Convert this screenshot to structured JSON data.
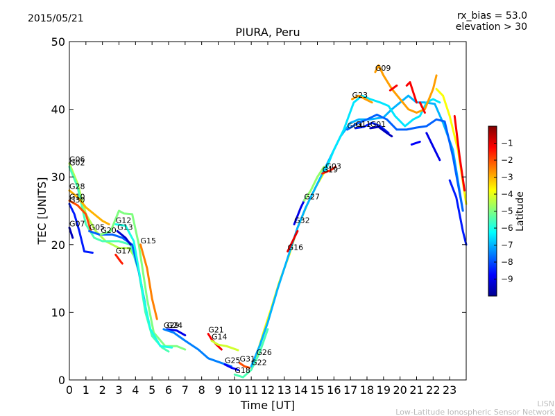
{
  "header": {
    "date": "2015/05/21",
    "rx_bias": "rx_bias = 53.0",
    "elevation": "elevation > 30"
  },
  "footer": {
    "watermark_line1": "LISN",
    "watermark_line2": "Low-Latitude Ionospheric Sensor Network"
  },
  "chart_data": {
    "type": "line",
    "title": "PIURA, Peru",
    "xlabel": "Time [UT]",
    "ylabel": "TEC [UNITS]",
    "xlim": [
      0,
      24
    ],
    "ylim": [
      0,
      50
    ],
    "xticks": [
      0,
      1,
      2,
      3,
      4,
      5,
      6,
      7,
      8,
      9,
      10,
      11,
      12,
      13,
      14,
      15,
      16,
      17,
      18,
      19,
      20,
      21,
      22,
      23
    ],
    "yticks": [
      0,
      10,
      20,
      30,
      40,
      50
    ],
    "colorbar": {
      "label": "Latitude",
      "range": [
        -10,
        0
      ],
      "ticks": [
        -9,
        -8,
        -7,
        -6,
        -5,
        -4,
        -3,
        -2,
        -1
      ],
      "tick_labels": [
        "−9",
        "−8",
        "−7",
        "−6",
        "−5",
        "−4",
        "−3",
        "−2",
        "−1"
      ],
      "colormap": [
        "#00008f",
        "#0000ff",
        "#0080ff",
        "#00ffff",
        "#80ff80",
        "#ffff00",
        "#ff8000",
        "#ff0000",
        "#800000"
      ]
    },
    "series": [
      {
        "name": "G06",
        "lat": -4.5,
        "points": [
          [
            0,
            32
          ],
          [
            0.5,
            29
          ],
          [
            1,
            24.5
          ],
          [
            1.6,
            22
          ],
          [
            2.2,
            20.5
          ],
          [
            3,
            19.5
          ],
          [
            3.6,
            19.5
          ],
          [
            4,
            18
          ]
        ]
      },
      {
        "name": "G02",
        "lat": -5.5,
        "points": [
          [
            0,
            31.5
          ],
          [
            0.5,
            28.5
          ],
          [
            1,
            23
          ],
          [
            1.5,
            21
          ],
          [
            2,
            20.5
          ],
          [
            3,
            20.5
          ],
          [
            3.7,
            20
          ],
          [
            4.2,
            16
          ],
          [
            4.6,
            10
          ],
          [
            5,
            6.5
          ],
          [
            5.6,
            4.8
          ],
          [
            6,
            4.2
          ]
        ]
      },
      {
        "name": "G28",
        "lat": -3.0,
        "points": [
          [
            0,
            28
          ],
          [
            0.5,
            27
          ],
          [
            1,
            25.5
          ],
          [
            1.5,
            24.5
          ],
          [
            2,
            23.5
          ],
          [
            2.4,
            23
          ]
        ]
      },
      {
        "name": "G10",
        "lat": -2.0,
        "points": [
          [
            0,
            26.5
          ],
          [
            0.5,
            25.8
          ],
          [
            1,
            24.5
          ],
          [
            1.3,
            22
          ]
        ]
      },
      {
        "name": "G30",
        "lat": -8.5,
        "points": [
          [
            0,
            26
          ],
          [
            0.3,
            24.5
          ],
          [
            0.6,
            22
          ],
          [
            0.9,
            19
          ],
          [
            1.4,
            18.8
          ]
        ]
      },
      {
        "name": "G07",
        "lat": -9.5,
        "points": [
          [
            0,
            22.5
          ],
          [
            0.2,
            21
          ]
        ]
      },
      {
        "name": "G05",
        "lat": -7.8,
        "points": [
          [
            1.2,
            22
          ],
          [
            1.8,
            21.5
          ],
          [
            2.6,
            21.5
          ],
          [
            3.2,
            21
          ],
          [
            3.8,
            20
          ],
          [
            4.2,
            16
          ],
          [
            4.6,
            11
          ]
        ]
      },
      {
        "name": "G20",
        "lat": -5.0,
        "points": [
          [
            1.9,
            21.5
          ],
          [
            2.5,
            22
          ],
          [
            3,
            25
          ],
          [
            3.3,
            24.6
          ],
          [
            3.8,
            24.5
          ],
          [
            4.2,
            20
          ],
          [
            4.7,
            12
          ],
          [
            5.1,
            7
          ],
          [
            5.8,
            5
          ],
          [
            6.5,
            5
          ],
          [
            7,
            4.5
          ]
        ]
      },
      {
        "name": "G13",
        "lat": -9.3,
        "points": [
          [
            2.9,
            22
          ],
          [
            3.4,
            21
          ],
          [
            3.7,
            20
          ]
        ]
      },
      {
        "name": "G12",
        "lat": -6.0,
        "points": [
          [
            2.8,
            23
          ],
          [
            3.4,
            22.8
          ],
          [
            3.9,
            20.5
          ],
          [
            4.5,
            12
          ],
          [
            4.9,
            7.5
          ],
          [
            5.5,
            5
          ],
          [
            6.2,
            4.8
          ]
        ]
      },
      {
        "name": "G17",
        "lat": -1.5,
        "points": [
          [
            2.8,
            18.5
          ],
          [
            3.1,
            17.5
          ],
          [
            3.2,
            17.2
          ]
        ]
      },
      {
        "name": "G15",
        "lat": -2.5,
        "points": [
          [
            4.3,
            20
          ],
          [
            4.7,
            16.5
          ],
          [
            5,
            12
          ],
          [
            5.3,
            9
          ]
        ]
      },
      {
        "name": "G24",
        "lat": -9.0,
        "points": [
          [
            5.9,
            7.5
          ],
          [
            6.5,
            7.3
          ],
          [
            7,
            6.6
          ]
        ]
      },
      {
        "name": "G29",
        "lat": -7.5,
        "points": [
          [
            5.7,
            7.5
          ],
          [
            6.3,
            7
          ],
          [
            7,
            5.8
          ],
          [
            7.8,
            4.5
          ],
          [
            8.4,
            3.2
          ],
          [
            9.2,
            2.5
          ],
          [
            9.8,
            2
          ]
        ]
      },
      {
        "name": "G21",
        "lat": -1.2,
        "points": [
          [
            8.4,
            6.8
          ],
          [
            8.6,
            6
          ],
          [
            8.9,
            5.2
          ],
          [
            9.2,
            4.5
          ]
        ]
      },
      {
        "name": "G14",
        "lat": -4.2,
        "points": [
          [
            8.6,
            5.8
          ],
          [
            9,
            5.2
          ],
          [
            9.5,
            5
          ],
          [
            10.2,
            4.4
          ]
        ]
      },
      {
        "name": "G25",
        "lat": -8.8,
        "points": [
          [
            9.4,
            2.3
          ],
          [
            9.8,
            1.8
          ],
          [
            10.2,
            1.5
          ]
        ]
      },
      {
        "name": "G31",
        "lat": -2.0,
        "points": [
          [
            10.3,
            2.5
          ],
          [
            10.6,
            2
          ],
          [
            10.9,
            1.8
          ]
        ]
      },
      {
        "name": "G18",
        "lat": -5.5,
        "points": [
          [
            10,
            0.8
          ],
          [
            10.5,
            0.4
          ],
          [
            11,
            1.5
          ],
          [
            11.5,
            4
          ],
          [
            12,
            7.5
          ]
        ]
      },
      {
        "name": "G26",
        "lat": -3.8,
        "points": [
          [
            11.3,
            3.5
          ],
          [
            11.8,
            7.5
          ],
          [
            12.2,
            10.5
          ],
          [
            12.7,
            14.5
          ],
          [
            13.3,
            18.5
          ],
          [
            13.8,
            22.5
          ],
          [
            14.4,
            26
          ],
          [
            14.9,
            28.5
          ],
          [
            15.5,
            31
          ]
        ]
      },
      {
        "name": "G22",
        "lat": -7.0,
        "points": [
          [
            11,
            2
          ],
          [
            11.5,
            5
          ],
          [
            12,
            8.5
          ],
          [
            12.6,
            13.5
          ],
          [
            13.2,
            18
          ],
          [
            13.8,
            22.5
          ],
          [
            14.3,
            25.5
          ],
          [
            15,
            29
          ],
          [
            15.8,
            33
          ],
          [
            16.4,
            36
          ],
          [
            17,
            38
          ],
          [
            17.5,
            38.5
          ],
          [
            18.2,
            38.5
          ],
          [
            19,
            38.8
          ],
          [
            19.5,
            40
          ],
          [
            20,
            41
          ],
          [
            20.5,
            42
          ],
          [
            21,
            41
          ],
          [
            21.5,
            41
          ],
          [
            22.1,
            40.8
          ],
          [
            22.6,
            38
          ],
          [
            23.2,
            34
          ],
          [
            23.8,
            25
          ]
        ]
      },
      {
        "name": "G16",
        "lat": -1.0,
        "points": [
          [
            13.2,
            19
          ],
          [
            13.5,
            20.5
          ],
          [
            13.8,
            22
          ]
        ]
      },
      {
        "name": "G32",
        "lat": -9.0,
        "points": [
          [
            13.6,
            23
          ],
          [
            14,
            25.5
          ],
          [
            14.3,
            27
          ]
        ]
      },
      {
        "name": "G27",
        "lat": -4.8,
        "points": [
          [
            14.2,
            26.5
          ],
          [
            14.6,
            28
          ],
          [
            15,
            30
          ],
          [
            15.4,
            31.5
          ]
        ]
      },
      {
        "name": "G19",
        "lat": -1.5,
        "points": [
          [
            15.3,
            30.5
          ],
          [
            15.8,
            31
          ],
          [
            16.1,
            31.5
          ]
        ]
      },
      {
        "name": "G03",
        "lat": -6.5,
        "points": [
          [
            15.5,
            31
          ],
          [
            16,
            34
          ],
          [
            16.6,
            37
          ],
          [
            17.2,
            41
          ],
          [
            17.7,
            42
          ],
          [
            18.2,
            41.5
          ],
          [
            18.8,
            41
          ],
          [
            19.3,
            40.5
          ],
          [
            19.7,
            39
          ],
          [
            20.3,
            37.5
          ],
          [
            20.8,
            38.5
          ],
          [
            21.2,
            39
          ],
          [
            21.6,
            41
          ],
          [
            22,
            41.5
          ],
          [
            22.4,
            41
          ]
        ]
      },
      {
        "name": "G04",
        "lat": -7.8,
        "points": [
          [
            16.8,
            37
          ],
          [
            17.5,
            38
          ],
          [
            18,
            38.5
          ],
          [
            18.6,
            39.2
          ],
          [
            19.2,
            38.5
          ],
          [
            19.8,
            37
          ],
          [
            20.4,
            37
          ],
          [
            21,
            37.3
          ],
          [
            21.6,
            37.5
          ],
          [
            22.2,
            38.5
          ],
          [
            22.7,
            38.2
          ],
          [
            23.2,
            33
          ],
          [
            23.8,
            25
          ]
        ]
      },
      {
        "name": "G11",
        "lat": -8.5,
        "points": [
          [
            17.3,
            37.2
          ],
          [
            17.8,
            37.4
          ],
          [
            18.3,
            38
          ],
          [
            18.8,
            37.5
          ],
          [
            19.3,
            36.5
          ]
        ]
      },
      {
        "name": "G01",
        "lat": -9.5,
        "points": [
          [
            18.2,
            37.2
          ],
          [
            18.7,
            37.4
          ],
          [
            19.2,
            36.5
          ],
          [
            19.5,
            36
          ]
        ]
      },
      {
        "name": "G23",
        "lat": -2.8,
        "points": [
          [
            17.1,
            41.5
          ],
          [
            17.5,
            42
          ],
          [
            17.9,
            41.5
          ],
          [
            18.3,
            41
          ]
        ]
      },
      {
        "name": "G09",
        "lat": -2.8,
        "points": [
          [
            18.5,
            45.5
          ],
          [
            18.7,
            46.5
          ],
          [
            19,
            45
          ],
          [
            19.5,
            43
          ],
          [
            20,
            41.5
          ],
          [
            20.5,
            40
          ],
          [
            21,
            39.5
          ],
          [
            21.5,
            40
          ],
          [
            22,
            43
          ],
          [
            22.2,
            45
          ]
        ]
      },
      {
        "name": "",
        "lat": -1.2,
        "points": [
          [
            19.4,
            42.8
          ],
          [
            19.8,
            43.5
          ]
        ]
      },
      {
        "name": "",
        "lat": -1.2,
        "points": [
          [
            20.4,
            43.5
          ],
          [
            20.6,
            44
          ],
          [
            20.8,
            42.5
          ],
          [
            21,
            41
          ]
        ]
      },
      {
        "name": "",
        "lat": -1.2,
        "points": [
          [
            21.2,
            41
          ],
          [
            21.5,
            39.5
          ]
        ]
      },
      {
        "name": "",
        "lat": -3.8,
        "points": [
          [
            22.2,
            43
          ],
          [
            22.6,
            42
          ],
          [
            23,
            39
          ],
          [
            23.5,
            34
          ],
          [
            24,
            26
          ]
        ]
      },
      {
        "name": "",
        "lat": -1.2,
        "points": [
          [
            23.3,
            39
          ],
          [
            23.6,
            33
          ],
          [
            23.9,
            28
          ]
        ]
      },
      {
        "name": "",
        "lat": -8.8,
        "points": [
          [
            20.7,
            34.8
          ],
          [
            21.2,
            35.2
          ]
        ]
      },
      {
        "name": "",
        "lat": -9.0,
        "points": [
          [
            21.6,
            36.5
          ],
          [
            22.1,
            34
          ],
          [
            22.4,
            32.5
          ]
        ]
      },
      {
        "name": "",
        "lat": -8.5,
        "points": [
          [
            23,
            29.5
          ],
          [
            23.4,
            27
          ],
          [
            23.8,
            22
          ],
          [
            24,
            20
          ]
        ]
      }
    ]
  }
}
